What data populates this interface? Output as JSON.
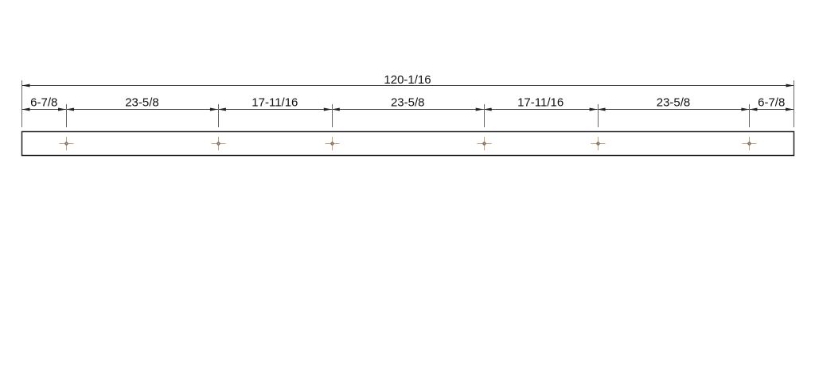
{
  "drawing": {
    "overall": {
      "label": "120-1/16",
      "value": 120.0625
    },
    "segments": [
      {
        "label": "6-7/8",
        "value": 6.875
      },
      {
        "label": "23-5/8",
        "value": 23.625
      },
      {
        "label": "17-11/16",
        "value": 17.6875
      },
      {
        "label": "23-5/8",
        "value": 23.625
      },
      {
        "label": "17-11/16",
        "value": 17.6875
      },
      {
        "label": "23-5/8",
        "value": 23.625
      },
      {
        "label": "6-7/8",
        "value": 6.875
      }
    ],
    "colors": {
      "line": "#222222",
      "marker": "#c8a27a",
      "marker_dot": "#555555"
    }
  }
}
